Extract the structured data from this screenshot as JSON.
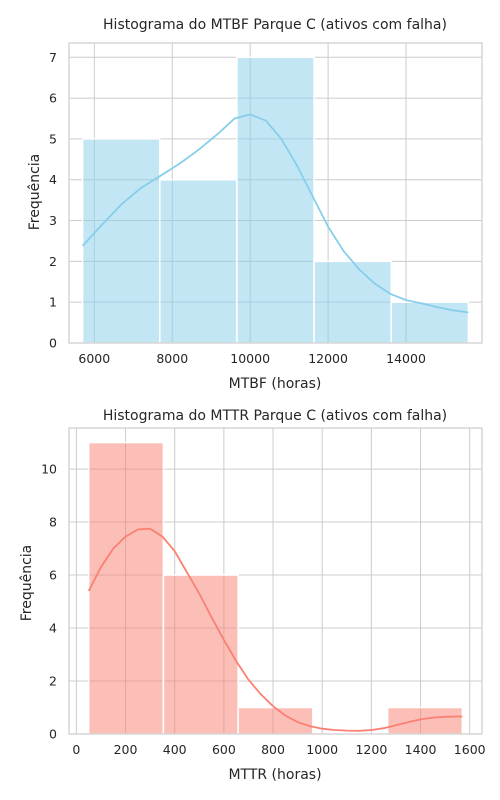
{
  "chart_data": [
    {
      "type": "histogram",
      "title": "Histograma do MTBF Parque C (ativos com falha)",
      "xlabel": "MTBF (horas)",
      "ylabel": "Frequência",
      "xlim": [
        5350,
        15950
      ],
      "ylim": [
        0,
        7.35
      ],
      "xticks": [
        6000,
        8000,
        10000,
        12000,
        14000
      ],
      "yticks": [
        0,
        1,
        2,
        3,
        4,
        5,
        6,
        7
      ],
      "grid": true,
      "bins": [
        {
          "start": 5700,
          "end": 7680,
          "count": 5
        },
        {
          "start": 7680,
          "end": 9660,
          "count": 4
        },
        {
          "start": 9660,
          "end": 11640,
          "count": 7
        },
        {
          "start": 11640,
          "end": 13620,
          "count": 2
        },
        {
          "start": 13620,
          "end": 15600,
          "count": 1
        }
      ],
      "kde": {
        "x": [
          5700,
          6200,
          6700,
          7200,
          7700,
          8200,
          8700,
          9200,
          9600,
          10000,
          10400,
          10800,
          11200,
          11600,
          12000,
          12400,
          12800,
          13200,
          13600,
          14000,
          14400,
          14800,
          15200,
          15600
        ],
        "y": [
          2.38,
          2.9,
          3.4,
          3.8,
          4.1,
          4.4,
          4.75,
          5.15,
          5.5,
          5.6,
          5.45,
          5.0,
          4.35,
          3.6,
          2.85,
          2.25,
          1.8,
          1.45,
          1.2,
          1.05,
          0.97,
          0.88,
          0.8,
          0.75
        ]
      },
      "colors": {
        "bar": "#87ceeb",
        "line": "#87ceeb"
      }
    },
    {
      "type": "histogram",
      "title": "Histograma do MTTR Parque C (ativos com falha)",
      "xlabel": "MTTR (horas)",
      "ylabel": "Frequência",
      "xlim": [
        -30,
        1650
      ],
      "ylim": [
        0,
        11.55
      ],
      "xticks": [
        0,
        200,
        400,
        600,
        800,
        1000,
        1200,
        1400,
        1600
      ],
      "yticks": [
        0,
        2,
        4,
        6,
        8,
        10
      ],
      "grid": true,
      "bins": [
        {
          "start": 50,
          "end": 354,
          "count": 11
        },
        {
          "start": 354,
          "end": 658,
          "count": 6
        },
        {
          "start": 658,
          "end": 962,
          "count": 1
        },
        {
          "start": 962,
          "end": 1266,
          "count": 0
        },
        {
          "start": 1266,
          "end": 1570,
          "count": 1
        }
      ],
      "kde": {
        "x": [
          50,
          100,
          150,
          200,
          250,
          300,
          350,
          400,
          450,
          500,
          550,
          600,
          650,
          700,
          750,
          800,
          850,
          900,
          950,
          1000,
          1050,
          1100,
          1150,
          1200,
          1250,
          1300,
          1350,
          1400,
          1450,
          1500,
          1550,
          1570
        ],
        "y": [
          5.4,
          6.3,
          7.0,
          7.45,
          7.72,
          7.75,
          7.45,
          6.9,
          6.1,
          5.3,
          4.4,
          3.55,
          2.75,
          2.05,
          1.5,
          1.05,
          0.7,
          0.45,
          0.3,
          0.2,
          0.15,
          0.13,
          0.12,
          0.15,
          0.22,
          0.33,
          0.45,
          0.55,
          0.62,
          0.65,
          0.66,
          0.66
        ]
      },
      "colors": {
        "bar": "#fa8072",
        "line": "#fa8072"
      }
    }
  ]
}
